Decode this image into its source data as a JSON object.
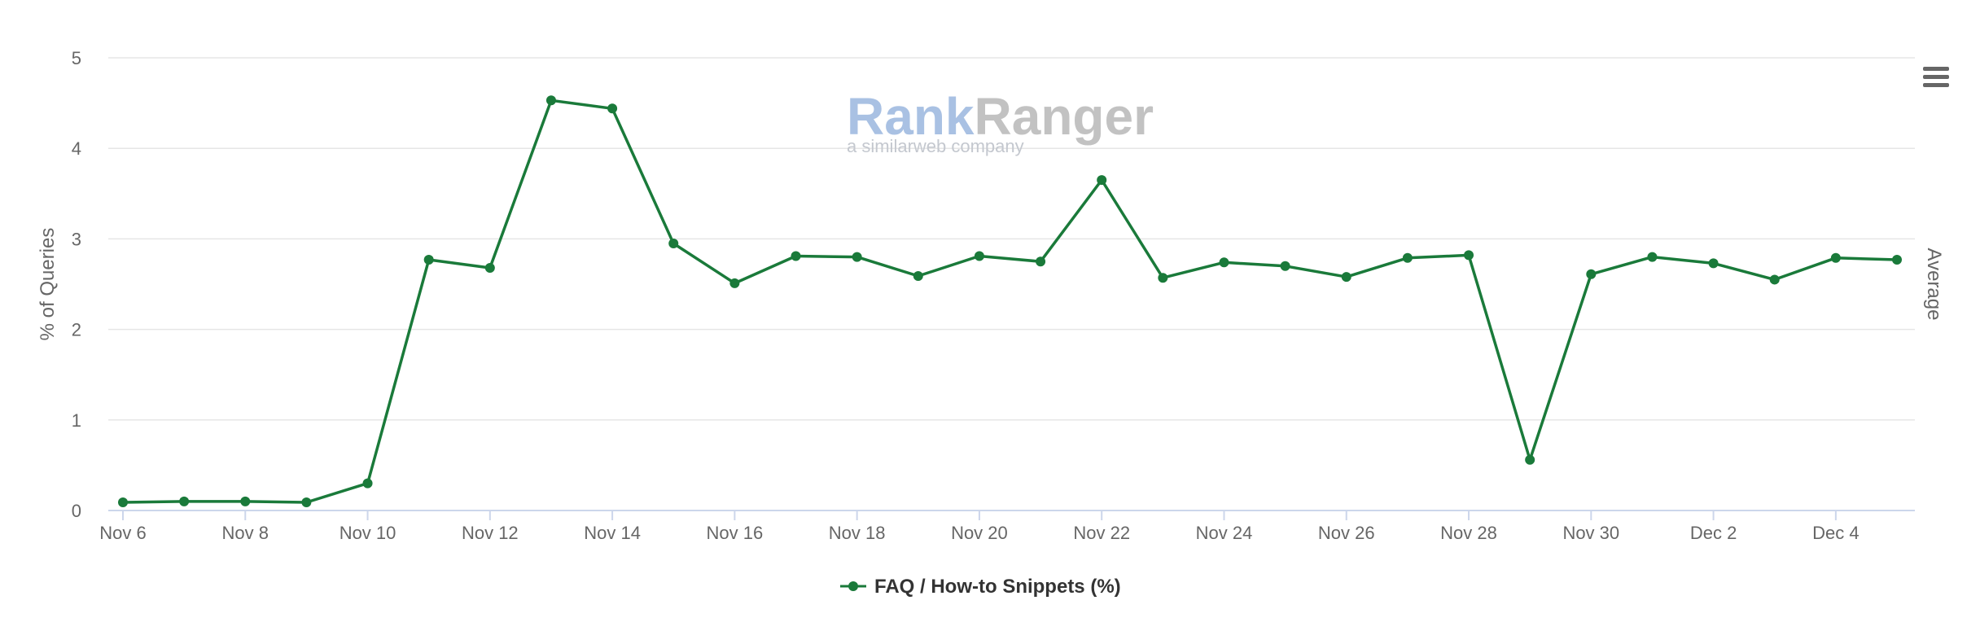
{
  "watermark": {
    "brand_a": "Rank",
    "brand_b": "Ranger",
    "tagline": "a similarweb company",
    "color_a": "#a9c1e3",
    "color_b": "#c2c2c2"
  },
  "menu": {
    "icon": "hamburger-menu-icon",
    "color": "#666666"
  },
  "colors": {
    "series": "#1a7a3a",
    "grid": "#e6e6e6",
    "axis_line": "#ccd6eb",
    "text": "#666666"
  },
  "chart_data": {
    "type": "line",
    "title": "",
    "xlabel": "",
    "ylabel": "% of Queries",
    "y2label": "Average",
    "ylim": [
      0,
      5
    ],
    "y_ticks": [
      0,
      1,
      2,
      3,
      4,
      5
    ],
    "grid": true,
    "legend_position": "bottom-center",
    "x": [
      "Nov 6",
      "Nov 7",
      "Nov 8",
      "Nov 9",
      "Nov 10",
      "Nov 11",
      "Nov 12",
      "Nov 13",
      "Nov 14",
      "Nov 15",
      "Nov 16",
      "Nov 17",
      "Nov 18",
      "Nov 19",
      "Nov 20",
      "Nov 21",
      "Nov 22",
      "Nov 23",
      "Nov 24",
      "Nov 25",
      "Nov 26",
      "Nov 27",
      "Nov 28",
      "Nov 29",
      "Nov 30",
      "Dec 1",
      "Dec 2",
      "Dec 3",
      "Dec 4",
      "Dec 5"
    ],
    "x_tick_labels": [
      "Nov 6",
      "Nov 8",
      "Nov 10",
      "Nov 12",
      "Nov 14",
      "Nov 16",
      "Nov 18",
      "Nov 20",
      "Nov 22",
      "Nov 24",
      "Nov 26",
      "Nov 28",
      "Nov 30",
      "Dec 2",
      "Dec 4"
    ],
    "series": [
      {
        "name": "FAQ / How-to Snippets (%)",
        "color": "#1a7a3a",
        "values": [
          0.09,
          0.1,
          0.1,
          0.09,
          0.3,
          2.77,
          2.68,
          4.53,
          4.44,
          2.95,
          2.51,
          2.81,
          2.8,
          2.59,
          2.81,
          2.75,
          3.65,
          2.57,
          2.74,
          2.7,
          2.58,
          2.79,
          2.82,
          0.56,
          2.61,
          2.8,
          2.73,
          2.55,
          2.79,
          2.77
        ]
      }
    ]
  }
}
